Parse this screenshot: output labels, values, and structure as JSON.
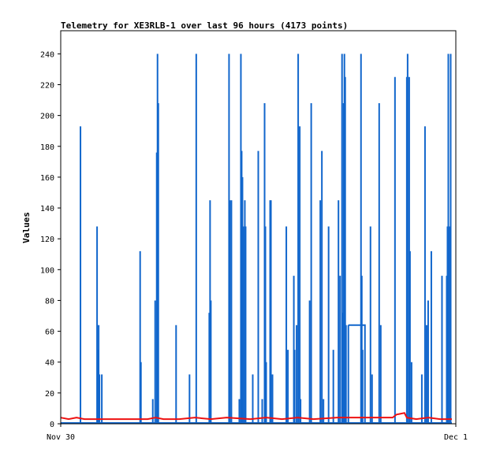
{
  "chart_data": {
    "type": "line",
    "title": "Telemetry for XE3RLB-1 over last 96 hours (4173 points)",
    "xlabel": "",
    "ylabel": "Values",
    "x_tick_labels": [
      "Nov 30",
      "Dec 1"
    ],
    "ylim": [
      0,
      255
    ],
    "y_ticks": [
      0,
      20,
      40,
      60,
      80,
      100,
      120,
      140,
      160,
      180,
      200,
      220,
      240
    ],
    "grid": false,
    "legend": "none",
    "colors": {
      "series_blue": "#1166cc",
      "series_red": "#ee1111",
      "frame": "#000000"
    },
    "series": [
      {
        "color": "#1166cc",
        "spikes": [
          [
            0.05,
            193
          ],
          [
            0.092,
            128
          ],
          [
            0.094,
            48
          ],
          [
            0.096,
            64
          ],
          [
            0.098,
            32
          ],
          [
            0.104,
            32
          ],
          [
            0.201,
            112
          ],
          [
            0.203,
            40
          ],
          [
            0.233,
            16
          ],
          [
            0.239,
            80
          ],
          [
            0.243,
            176
          ],
          [
            0.245,
            240
          ],
          [
            0.247,
            208
          ],
          [
            0.292,
            64
          ],
          [
            0.326,
            32
          ],
          [
            0.343,
            240
          ],
          [
            0.376,
            72
          ],
          [
            0.378,
            145
          ],
          [
            0.38,
            80
          ],
          [
            0.426,
            240
          ],
          [
            0.428,
            145
          ],
          [
            0.432,
            145
          ],
          [
            0.452,
            16
          ],
          [
            0.456,
            240
          ],
          [
            0.458,
            177
          ],
          [
            0.46,
            160
          ],
          [
            0.462,
            128
          ],
          [
            0.466,
            145
          ],
          [
            0.468,
            128
          ],
          [
            0.486,
            32
          ],
          [
            0.5,
            177
          ],
          [
            0.51,
            16
          ],
          [
            0.516,
            208
          ],
          [
            0.518,
            128
          ],
          [
            0.52,
            40
          ],
          [
            0.53,
            145
          ],
          [
            0.532,
            145
          ],
          [
            0.536,
            32
          ],
          [
            0.571,
            128
          ],
          [
            0.575,
            48
          ],
          [
            0.59,
            96
          ],
          [
            0.592,
            48
          ],
          [
            0.597,
            64
          ],
          [
            0.601,
            240
          ],
          [
            0.605,
            193
          ],
          [
            0.607,
            16
          ],
          [
            0.63,
            80
          ],
          [
            0.634,
            208
          ],
          [
            0.657,
            145
          ],
          [
            0.661,
            177
          ],
          [
            0.665,
            16
          ],
          [
            0.678,
            128
          ],
          [
            0.69,
            48
          ],
          [
            0.703,
            145
          ],
          [
            0.707,
            96
          ],
          [
            0.712,
            240
          ],
          [
            0.714,
            72
          ],
          [
            0.716,
            208
          ],
          [
            0.718,
            240
          ],
          [
            0.72,
            225
          ],
          [
            0.722,
            64
          ],
          [
            0.728,
            64
          ],
          [
            0.76,
            240
          ],
          [
            0.762,
            96
          ],
          [
            0.764,
            48
          ],
          [
            0.784,
            128
          ],
          [
            0.788,
            32
          ],
          [
            0.806,
            208
          ],
          [
            0.81,
            64
          ],
          [
            0.846,
            225
          ],
          [
            0.876,
            225
          ],
          [
            0.878,
            240
          ],
          [
            0.882,
            225
          ],
          [
            0.884,
            112
          ],
          [
            0.888,
            40
          ],
          [
            0.914,
            32
          ],
          [
            0.922,
            193
          ],
          [
            0.926,
            64
          ],
          [
            0.93,
            80
          ],
          [
            0.938,
            112
          ],
          [
            0.965,
            96
          ],
          [
            0.977,
            96
          ],
          [
            0.979,
            128
          ],
          [
            0.981,
            240
          ],
          [
            0.985,
            128
          ],
          [
            0.987,
            240
          ]
        ],
        "plateaus": [
          [
            0.728,
            0.77,
            64
          ]
        ]
      },
      {
        "color": "#ee1111",
        "points": [
          [
            0.0,
            4
          ],
          [
            0.02,
            3
          ],
          [
            0.04,
            4
          ],
          [
            0.06,
            3
          ],
          [
            0.12,
            3
          ],
          [
            0.22,
            3
          ],
          [
            0.24,
            4
          ],
          [
            0.26,
            3
          ],
          [
            0.3,
            3
          ],
          [
            0.34,
            4
          ],
          [
            0.38,
            3
          ],
          [
            0.42,
            4
          ],
          [
            0.48,
            3
          ],
          [
            0.52,
            4
          ],
          [
            0.56,
            3
          ],
          [
            0.6,
            4
          ],
          [
            0.64,
            3
          ],
          [
            0.7,
            4
          ],
          [
            0.76,
            4
          ],
          [
            0.8,
            4
          ],
          [
            0.84,
            4
          ],
          [
            0.85,
            6
          ],
          [
            0.87,
            7
          ],
          [
            0.876,
            4
          ],
          [
            0.9,
            3
          ],
          [
            0.93,
            4
          ],
          [
            0.96,
            3
          ],
          [
            0.99,
            3
          ]
        ]
      }
    ]
  }
}
